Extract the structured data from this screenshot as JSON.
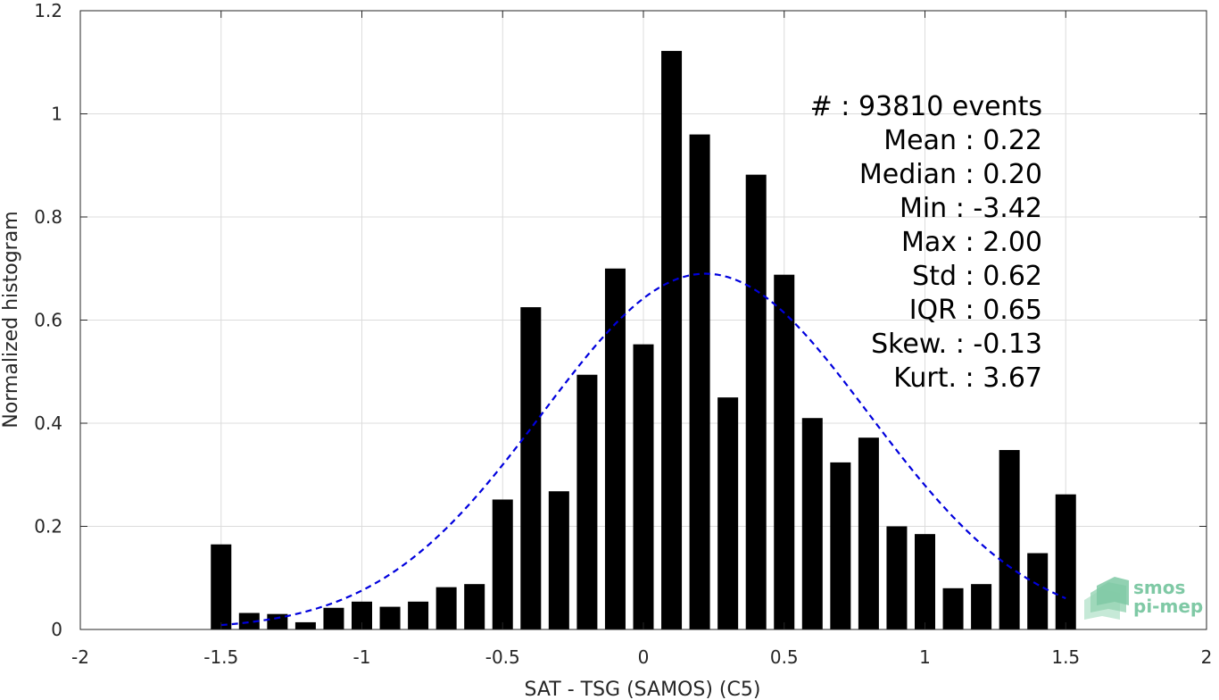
{
  "chart_data": {
    "type": "bar",
    "title": "",
    "xlabel": "SAT - TSG (SAMOS) (C5)",
    "ylabel": "Normalized histogram",
    "xlim": [
      -2,
      2
    ],
    "ylim": [
      0,
      1.2
    ],
    "xticks": [
      -2,
      -1.5,
      -1,
      -0.5,
      0,
      0.5,
      1,
      1.5,
      2
    ],
    "xtick_labels": [
      "-2",
      "-1.5",
      "-1",
      "-0.5",
      "0",
      "0.5",
      "1",
      "1.5",
      "2"
    ],
    "yticks": [
      0,
      0.2,
      0.4,
      0.6,
      0.8,
      1,
      1.2
    ],
    "ytick_labels": [
      "0",
      "0.2",
      "0.4",
      "0.6",
      "0.8",
      "1",
      "1.2"
    ],
    "grid": true,
    "bar_color": "#000000",
    "bin_width": 0.1,
    "x": [
      -1.5,
      -1.4,
      -1.3,
      -1.2,
      -1.1,
      -1.0,
      -0.9,
      -0.8,
      -0.7,
      -0.6,
      -0.5,
      -0.4,
      -0.3,
      -0.2,
      -0.1,
      0.0,
      0.1,
      0.2,
      0.3,
      0.4,
      0.5,
      0.6,
      0.7,
      0.8,
      0.9,
      1.0,
      1.1,
      1.2,
      1.3,
      1.4,
      1.5
    ],
    "values": [
      0.165,
      0.032,
      0.03,
      0.014,
      0.042,
      0.054,
      0.044,
      0.054,
      0.082,
      0.088,
      0.252,
      0.625,
      0.268,
      0.494,
      0.7,
      0.553,
      1.122,
      0.96,
      0.45,
      0.882,
      0.688,
      0.41,
      0.324,
      0.372,
      0.2,
      0.185,
      0.08,
      0.088,
      0.348,
      0.148,
      0.262
    ],
    "fit_curve": {
      "type": "gaussian",
      "mean": 0.22,
      "std": 0.58,
      "peak": 0.69,
      "x_range": [
        -1.5,
        1.5
      ],
      "color": "#0000dd",
      "style": "dashed"
    },
    "stats": [
      {
        "label": "#  : 93810 events"
      },
      {
        "label": "Mean : 0.22"
      },
      {
        "label": "Median : 0.20"
      },
      {
        "label": "Min : -3.42"
      },
      {
        "label": "Max : 2.00"
      },
      {
        "label": "Std : 0.62"
      },
      {
        "label": "IQR : 0.65"
      },
      {
        "label": "Skew. : -0.13"
      },
      {
        "label": "Kurt. : 3.67"
      }
    ]
  },
  "logo": {
    "line1": "smos",
    "line2": "pi-mep",
    "color": "#7fc9a5"
  }
}
